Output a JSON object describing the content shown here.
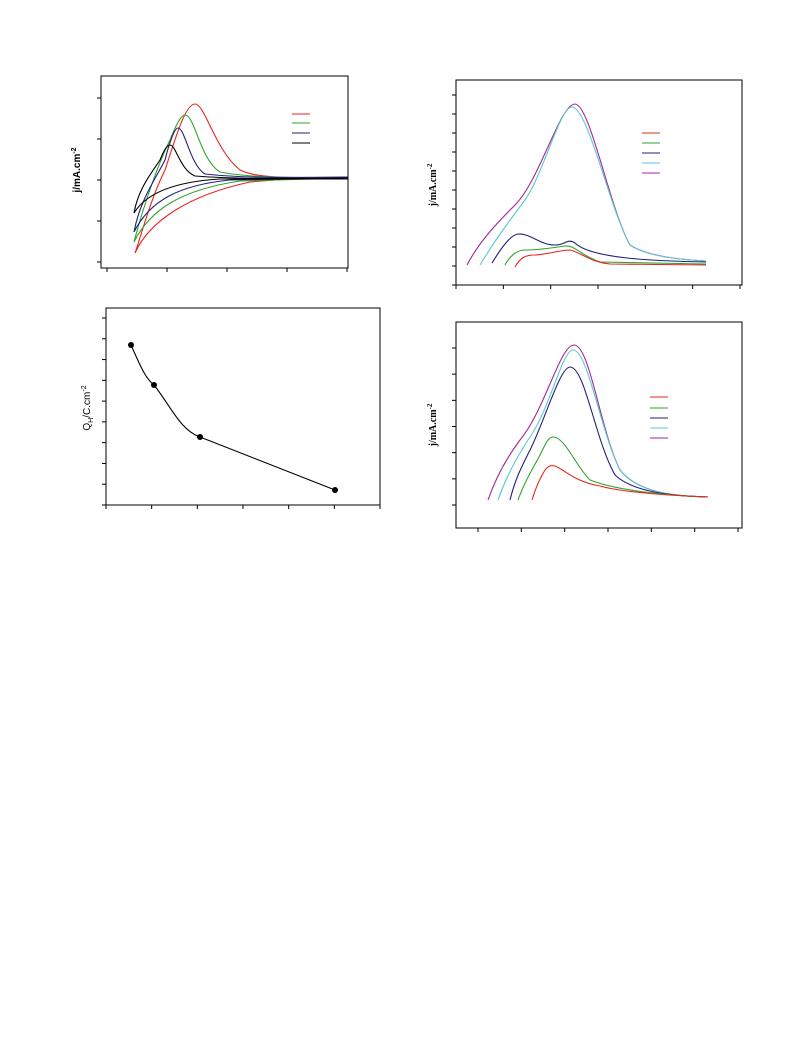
{
  "panels": [
    {
      "y_label": {
        "text": "j/mA.cm",
        "sup": "-2"
      }
    },
    {
      "y_label": {
        "text": "j/mA.cm",
        "sup": "-2"
      }
    },
    {
      "y_label": {
        "text": "Q",
        "sub": "H",
        "after": "/C.cm",
        "sup": "-2"
      }
    },
    {
      "y_label": {
        "text": "j/mA.cm",
        "sup": "-2"
      }
    }
  ]
}
